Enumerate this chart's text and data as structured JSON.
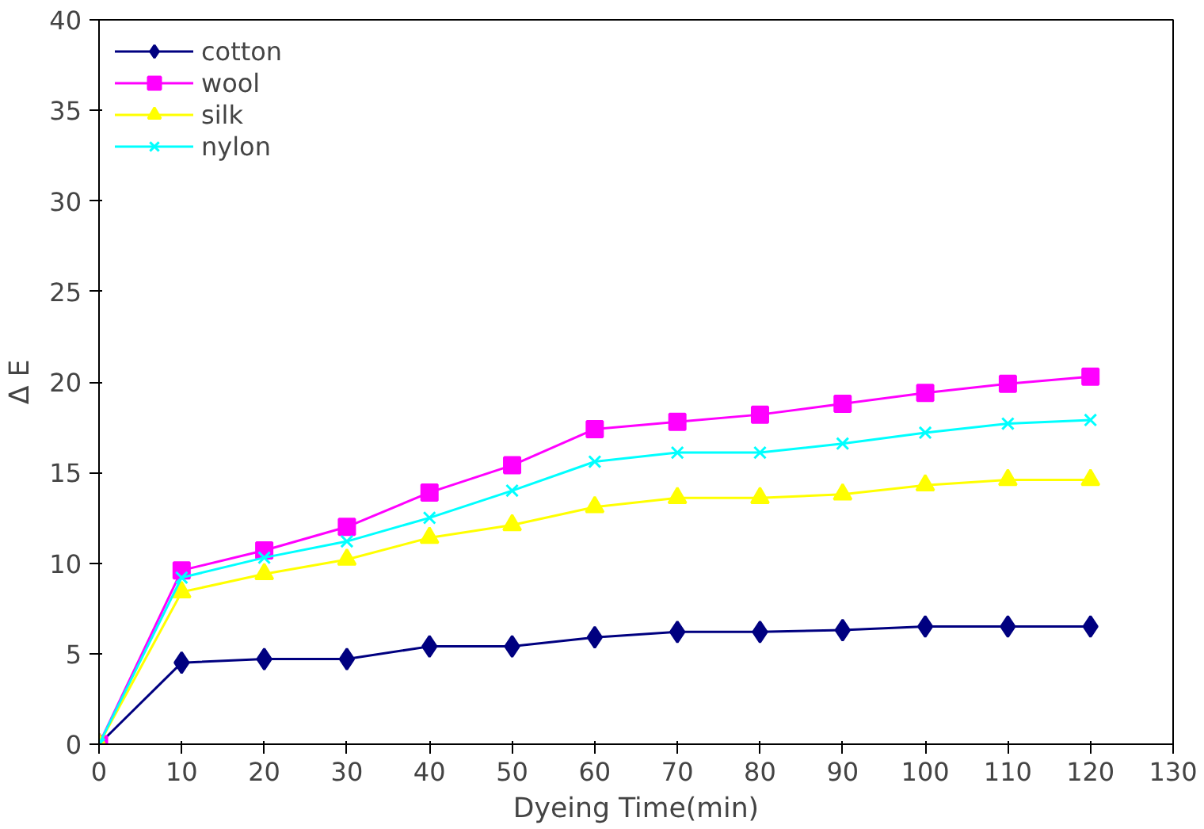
{
  "chart_data": {
    "type": "line",
    "xlabel": "Dyeing Time(min)",
    "ylabel": "Δ E",
    "x": [
      0,
      10,
      20,
      30,
      40,
      50,
      60,
      70,
      80,
      90,
      100,
      110,
      120
    ],
    "xlim": [
      0,
      130
    ],
    "xticks": [
      0,
      10,
      20,
      30,
      40,
      50,
      60,
      70,
      80,
      90,
      100,
      110,
      120,
      130
    ],
    "ylim": [
      0,
      40
    ],
    "yticks": [
      0,
      5,
      10,
      15,
      20,
      25,
      30,
      35,
      40
    ],
    "grid": false,
    "legend": "top left",
    "line_style": "solid",
    "series": [
      {
        "name": "cotton",
        "color": "#000080",
        "marker": "diamond",
        "values": [
          0,
          4.5,
          4.7,
          4.7,
          5.4,
          5.4,
          5.9,
          6.2,
          6.2,
          6.3,
          6.5,
          6.5,
          6.5
        ]
      },
      {
        "name": "wool",
        "color": "#ff00ff",
        "marker": "square",
        "values": [
          0,
          9.6,
          10.7,
          12.0,
          13.9,
          15.4,
          17.4,
          17.8,
          18.2,
          18.8,
          19.4,
          19.9,
          20.3
        ]
      },
      {
        "name": "silk",
        "color": "#ffff00",
        "marker": "triangle",
        "values": [
          0,
          8.4,
          9.4,
          10.2,
          11.4,
          12.1,
          13.1,
          13.6,
          13.6,
          13.8,
          14.3,
          14.6,
          14.6
        ]
      },
      {
        "name": "nylon",
        "color": "#00ffff",
        "marker": "x",
        "values": [
          0,
          9.2,
          10.3,
          11.2,
          12.5,
          14.0,
          15.6,
          16.1,
          16.1,
          16.6,
          17.2,
          17.7,
          17.9
        ]
      }
    ]
  }
}
